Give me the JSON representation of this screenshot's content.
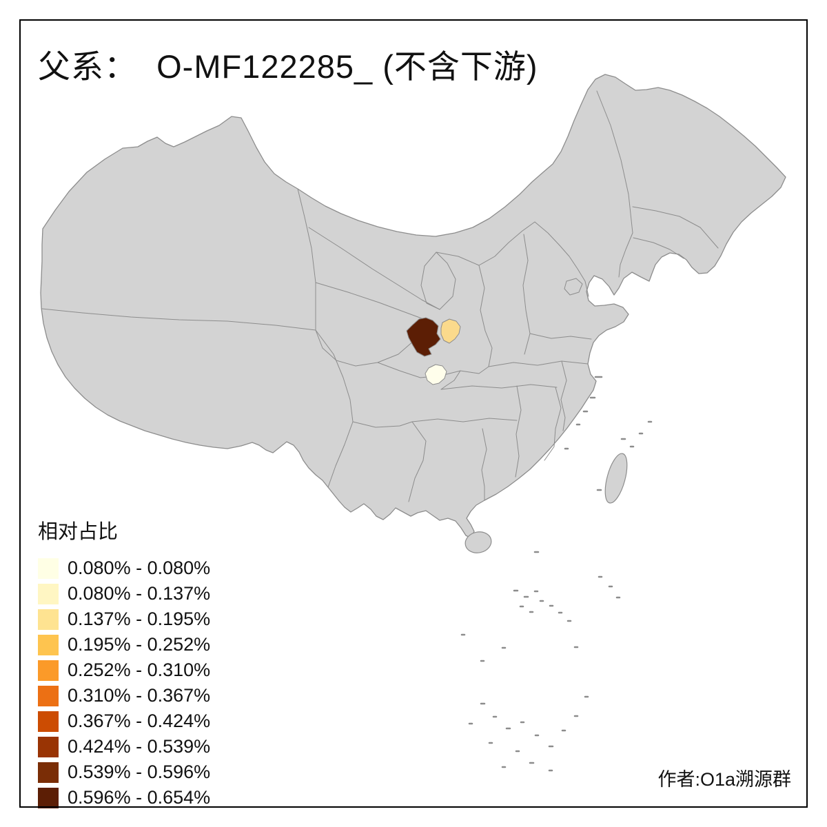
{
  "title": "父系：  O-MF122285_ (不含下游)",
  "legend": {
    "title": "相对占比",
    "items": [
      {
        "range": "0.080% - 0.080%",
        "color": "#FFFFE5"
      },
      {
        "range": "0.080% - 0.137%",
        "color": "#FFF6C3"
      },
      {
        "range": "0.137% - 0.195%",
        "color": "#FEE391"
      },
      {
        "range": "0.195% - 0.252%",
        "color": "#FEC44F"
      },
      {
        "range": "0.252% - 0.310%",
        "color": "#FB9A29"
      },
      {
        "range": "0.310% - 0.367%",
        "color": "#EC7014"
      },
      {
        "range": "0.367% - 0.424%",
        "color": "#CC4C02"
      },
      {
        "range": "0.424% - 0.539%",
        "color": "#993404"
      },
      {
        "range": "0.539% - 0.596%",
        "color": "#7A2D06"
      },
      {
        "range": "0.596% - 0.654%",
        "color": "#5C1E05"
      }
    ]
  },
  "map": {
    "land_fill": "#D3D3D3",
    "border_color": "#8C8C8C",
    "regions": [
      {
        "id": "region-darkest",
        "color": "#5C1E05",
        "legend_range": "0.596% - 0.654%"
      },
      {
        "id": "region-light-amber",
        "color": "#FBDA8C",
        "legend_range": "0.137% - 0.195%"
      },
      {
        "id": "region-palest",
        "color": "#FFFEEB",
        "legend_range": "0.080% - 0.080%"
      }
    ]
  },
  "credit": "作者:O1a溯源群"
}
